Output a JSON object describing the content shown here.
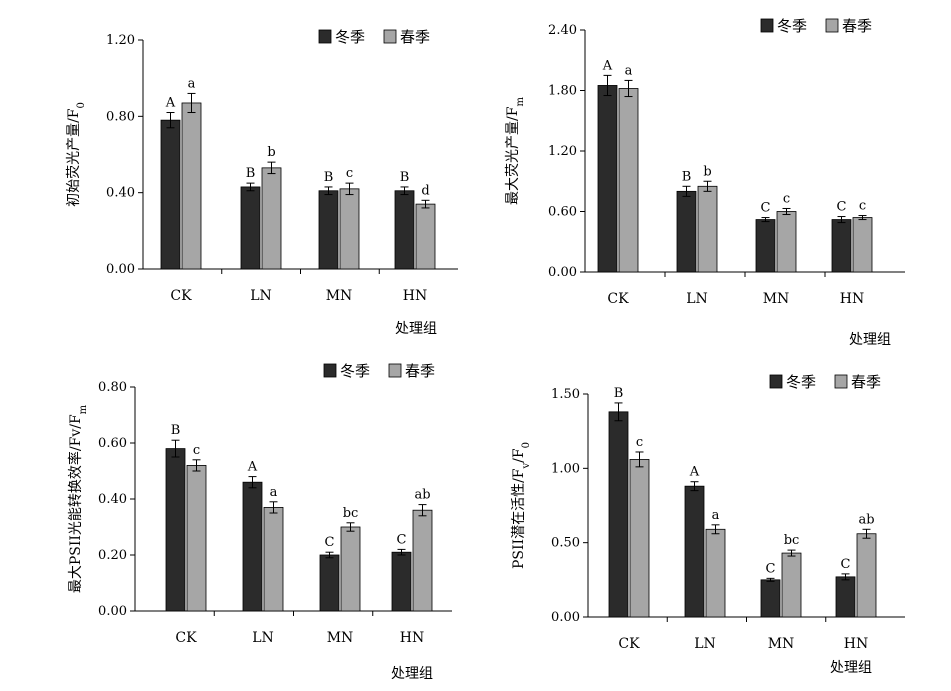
{
  "legend": {
    "winter": "冬季",
    "spring": "春季"
  },
  "colors": {
    "winter": "#2b2b2b",
    "spring": "#a6a6a6",
    "axis": "#000000"
  },
  "chart_data": [
    {
      "type": "bar",
      "title": "",
      "xlabel": "处理组",
      "ylabel": "初始荧光产量/F",
      "ylabel_sub": "0",
      "categories": [
        "CK",
        "LN",
        "MN",
        "HN"
      ],
      "ylim": [
        0,
        1.2
      ],
      "yticks": [
        "0.00",
        "0.40",
        "0.80",
        "1.20"
      ],
      "series": [
        {
          "name": "冬季",
          "values": [
            0.78,
            0.43,
            0.41,
            0.41
          ],
          "errors": [
            0.04,
            0.02,
            0.02,
            0.02
          ],
          "labels": [
            "A",
            "B",
            "B",
            "B"
          ]
        },
        {
          "name": "春季",
          "values": [
            0.87,
            0.53,
            0.42,
            0.34
          ],
          "errors": [
            0.05,
            0.03,
            0.03,
            0.02
          ],
          "labels": [
            "a",
            "b",
            "c",
            "d"
          ]
        }
      ]
    },
    {
      "type": "bar",
      "title": "",
      "xlabel": "处理组",
      "ylabel": "最大荧光产量/F",
      "ylabel_sub": "m",
      "categories": [
        "CK",
        "LN",
        "MN",
        "HN"
      ],
      "ylim": [
        0,
        2.4
      ],
      "yticks": [
        "0.00",
        "0.60",
        "1.20",
        "1.80",
        "2.40"
      ],
      "series": [
        {
          "name": "冬季",
          "values": [
            1.85,
            0.8,
            0.52,
            0.52
          ],
          "errors": [
            0.1,
            0.05,
            0.02,
            0.03
          ],
          "labels": [
            "A",
            "B",
            "C",
            "C"
          ]
        },
        {
          "name": "春季",
          "values": [
            1.82,
            0.85,
            0.6,
            0.54
          ],
          "errors": [
            0.08,
            0.05,
            0.03,
            0.02
          ],
          "labels": [
            "a",
            "b",
            "c",
            "c"
          ]
        }
      ]
    },
    {
      "type": "bar",
      "title": "",
      "xlabel": "处理组",
      "ylabel": "最大PSII光能转换效率/Fv/F",
      "ylabel_sub": "m",
      "categories": [
        "CK",
        "LN",
        "MN",
        "HN"
      ],
      "ylim": [
        0,
        0.8
      ],
      "yticks": [
        "0.00",
        "0.20",
        "0.40",
        "0.60",
        "0.80"
      ],
      "series": [
        {
          "name": "冬季",
          "values": [
            0.58,
            0.46,
            0.2,
            0.21
          ],
          "errors": [
            0.03,
            0.02,
            0.01,
            0.01
          ],
          "labels": [
            "B",
            "A",
            "C",
            "C"
          ]
        },
        {
          "name": "春季",
          "values": [
            0.52,
            0.37,
            0.3,
            0.36
          ],
          "errors": [
            0.02,
            0.02,
            0.015,
            0.02
          ],
          "labels": [
            "c",
            "a",
            "bc",
            "ab"
          ]
        }
      ]
    },
    {
      "type": "bar",
      "title": "",
      "xlabel": "处理组",
      "ylabel": "PSII潜在活性/F",
      "ylabel_mid": "/F",
      "ylabel_sub": "v",
      "ylabel_sub2": "0",
      "categories": [
        "CK",
        "LN",
        "MN",
        "HN"
      ],
      "ylim": [
        0,
        1.5
      ],
      "yticks": [
        "0.00",
        "0.50",
        "1.00",
        "1.50"
      ],
      "series": [
        {
          "name": "冬季",
          "values": [
            1.38,
            0.88,
            0.25,
            0.27
          ],
          "errors": [
            0.06,
            0.03,
            0.01,
            0.02
          ],
          "labels": [
            "B",
            "A",
            "C",
            "C"
          ]
        },
        {
          "name": "春季",
          "values": [
            1.06,
            0.59,
            0.43,
            0.56
          ],
          "errors": [
            0.05,
            0.03,
            0.02,
            0.03
          ],
          "labels": [
            "c",
            "a",
            "bc",
            "ab"
          ]
        }
      ]
    }
  ]
}
